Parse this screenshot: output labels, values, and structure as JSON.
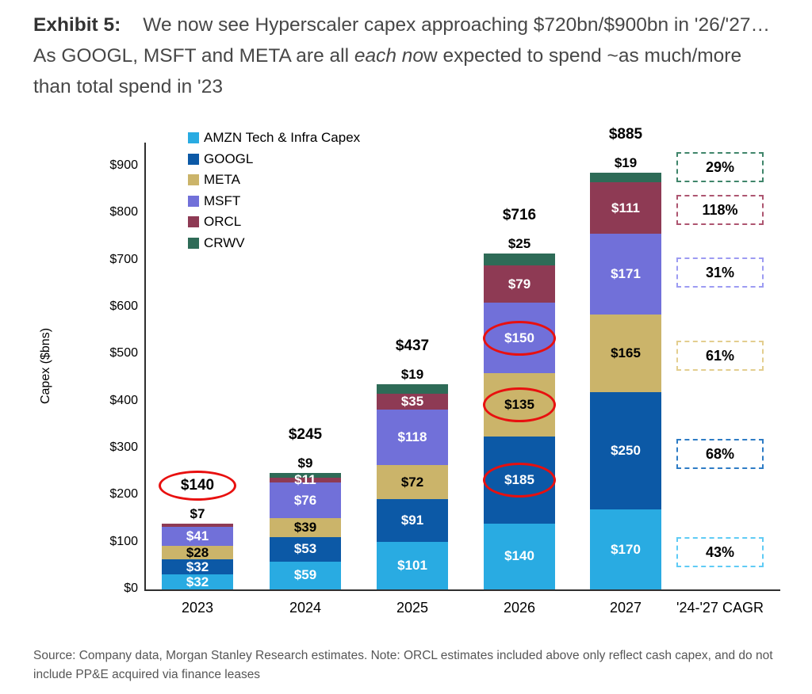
{
  "title": {
    "exhibit": "Exhibit 5:",
    "text_1": "We now see Hyperscaler capex approaching $720bn/$900bn in '26/'27… As GOOGL, MSFT and META are all ",
    "text_italic": "each no",
    "text_2": "w expected to spend ~as much/more than total spend in '23"
  },
  "source": "Source: Company data, Morgan Stanley Research estimates. Note: ORCL estimates included above only reflect cash capex, and do not include PP&E acquired via finance leases",
  "chart_data": {
    "type": "bar",
    "stacked": true,
    "ylabel": "Capex ($bns)",
    "xlabel": "",
    "ylim": [
      0,
      950
    ],
    "grid": false,
    "legend_position": "top-left-inside",
    "highlight_color": "#e8100f",
    "y_ticks": [
      {
        "value": 0,
        "label": "$0"
      },
      {
        "value": 100,
        "label": "$100"
      },
      {
        "value": 200,
        "label": "$200"
      },
      {
        "value": 300,
        "label": "$300"
      },
      {
        "value": 400,
        "label": "$400"
      },
      {
        "value": 500,
        "label": "$500"
      },
      {
        "value": 600,
        "label": "$600"
      },
      {
        "value": 700,
        "label": "$700"
      },
      {
        "value": 800,
        "label": "$800"
      },
      {
        "value": 900,
        "label": "$900"
      }
    ],
    "series": [
      {
        "key": "amzn",
        "name": "AMZN Tech & Infra Capex",
        "color": "#29abe2",
        "box_color": "#5fcbf5",
        "values": [
          32,
          59,
          101,
          140,
          170
        ]
      },
      {
        "key": "googl",
        "name": "GOOGL",
        "color": "#0c59a6",
        "box_color": "#2e7cc5",
        "values": [
          32,
          53,
          91,
          185,
          250
        ]
      },
      {
        "key": "meta",
        "name": "META",
        "color": "#cbb46a",
        "box_color": "#e3ce8f",
        "values": [
          28,
          39,
          72,
          135,
          165
        ]
      },
      {
        "key": "msft",
        "name": "MSFT",
        "color": "#7170d9",
        "box_color": "#9c9bf2",
        "values": [
          41,
          76,
          118,
          150,
          171
        ]
      },
      {
        "key": "orcl",
        "name": "ORCL",
        "color": "#8e3a54",
        "box_color": "#ad5570",
        "values": [
          7,
          11,
          35,
          79,
          111
        ]
      },
      {
        "key": "crwv",
        "name": "CRWV",
        "color": "#2e6b57",
        "box_color": "#3f856a",
        "values": [
          0,
          9,
          19,
          25,
          19
        ]
      }
    ],
    "categories": [
      "2023",
      "2024",
      "2025",
      "2026",
      "2027"
    ],
    "columns": [
      {
        "category": "2023",
        "total_label": "$140",
        "total_value": 140,
        "total_circled": true,
        "segments": [
          {
            "series": "amzn",
            "value": 32,
            "label": "$32",
            "label_pos": "inside",
            "label_color": "#ffffff"
          },
          {
            "series": "googl",
            "value": 32,
            "label": "$32",
            "label_pos": "inside",
            "label_color": "#ffffff"
          },
          {
            "series": "meta",
            "value": 28,
            "label": "$28",
            "label_pos": "inside",
            "label_color": "#000000"
          },
          {
            "series": "msft",
            "value": 41,
            "label": "$41",
            "label_pos": "inside",
            "label_color": "#ffffff"
          },
          {
            "series": "orcl",
            "value": 7,
            "label": "$7",
            "label_pos": "above",
            "label_color": "#000000"
          }
        ]
      },
      {
        "category": "2024",
        "total_label": "$245",
        "total_value": 245,
        "total_circled": false,
        "segments": [
          {
            "series": "amzn",
            "value": 59,
            "label": "$59",
            "label_pos": "inside",
            "label_color": "#ffffff"
          },
          {
            "series": "googl",
            "value": 53,
            "label": "$53",
            "label_pos": "inside",
            "label_color": "#ffffff"
          },
          {
            "series": "meta",
            "value": 39,
            "label": "$39",
            "label_pos": "inside",
            "label_color": "#000000"
          },
          {
            "series": "msft",
            "value": 76,
            "label": "$76",
            "label_pos": "inside",
            "label_color": "#ffffff"
          },
          {
            "series": "orcl",
            "value": 11,
            "label": "$11",
            "label_pos": "inside",
            "label_color": "#ffffff"
          },
          {
            "series": "crwv",
            "value": 9,
            "label": "$9",
            "label_pos": "above",
            "label_color": "#000000"
          }
        ]
      },
      {
        "category": "2025",
        "total_label": "$437",
        "total_value": 437,
        "total_circled": false,
        "segments": [
          {
            "series": "amzn",
            "value": 101,
            "label": "$101",
            "label_pos": "inside",
            "label_color": "#ffffff"
          },
          {
            "series": "googl",
            "value": 91,
            "label": "$91",
            "label_pos": "inside",
            "label_color": "#ffffff"
          },
          {
            "series": "meta",
            "value": 72,
            "label": "$72",
            "label_pos": "inside",
            "label_color": "#000000"
          },
          {
            "series": "msft",
            "value": 118,
            "label": "$118",
            "label_pos": "inside",
            "label_color": "#ffffff"
          },
          {
            "series": "orcl",
            "value": 35,
            "label": "$35",
            "label_pos": "inside",
            "label_color": "#ffffff"
          },
          {
            "series": "crwv",
            "value": 19,
            "label": "$19",
            "label_pos": "above",
            "label_color": "#000000"
          }
        ]
      },
      {
        "category": "2026",
        "total_label": "$716",
        "total_value": 716,
        "total_circled": false,
        "segments": [
          {
            "series": "amzn",
            "value": 140,
            "label": "$140",
            "label_pos": "inside",
            "label_color": "#ffffff"
          },
          {
            "series": "googl",
            "value": 185,
            "label": "$185",
            "label_pos": "inside",
            "label_color": "#ffffff",
            "circled": true
          },
          {
            "series": "meta",
            "value": 135,
            "label": "$135",
            "label_pos": "inside",
            "label_color": "#000000",
            "circled": true
          },
          {
            "series": "msft",
            "value": 150,
            "label": "$150",
            "label_pos": "inside",
            "label_color": "#ffffff",
            "circled": true
          },
          {
            "series": "orcl",
            "value": 79,
            "label": "$79",
            "label_pos": "inside",
            "label_color": "#ffffff"
          },
          {
            "series": "crwv",
            "value": 25,
            "label": "$25",
            "label_pos": "above",
            "label_color": "#000000"
          }
        ]
      },
      {
        "category": "2027",
        "total_label": "$885",
        "total_value": 885,
        "total_circled": false,
        "segments": [
          {
            "series": "amzn",
            "value": 170,
            "label": "$170",
            "label_pos": "inside",
            "label_color": "#ffffff"
          },
          {
            "series": "googl",
            "value": 250,
            "label": "$250",
            "label_pos": "inside",
            "label_color": "#ffffff"
          },
          {
            "series": "meta",
            "value": 165,
            "label": "$165",
            "label_pos": "inside",
            "label_color": "#000000"
          },
          {
            "series": "msft",
            "value": 171,
            "label": "$171",
            "label_pos": "inside",
            "label_color": "#ffffff"
          },
          {
            "series": "orcl",
            "value": 111,
            "label": "$111",
            "label_pos": "inside",
            "label_color": "#ffffff"
          },
          {
            "series": "crwv",
            "value": 19,
            "label": "$19",
            "label_pos": "above",
            "label_color": "#000000"
          }
        ]
      },
      {
        "category": "'24-'27 CAGR"
      }
    ],
    "cagr": {
      "header": "'24-'27 CAGR",
      "boxes": [
        {
          "series": "crwv",
          "label": "29%"
        },
        {
          "series": "orcl",
          "label": "118%"
        },
        {
          "series": "msft",
          "label": "31%"
        },
        {
          "series": "meta",
          "label": "61%"
        },
        {
          "series": "googl",
          "label": "68%"
        },
        {
          "series": "amzn",
          "label": "43%"
        }
      ]
    }
  }
}
